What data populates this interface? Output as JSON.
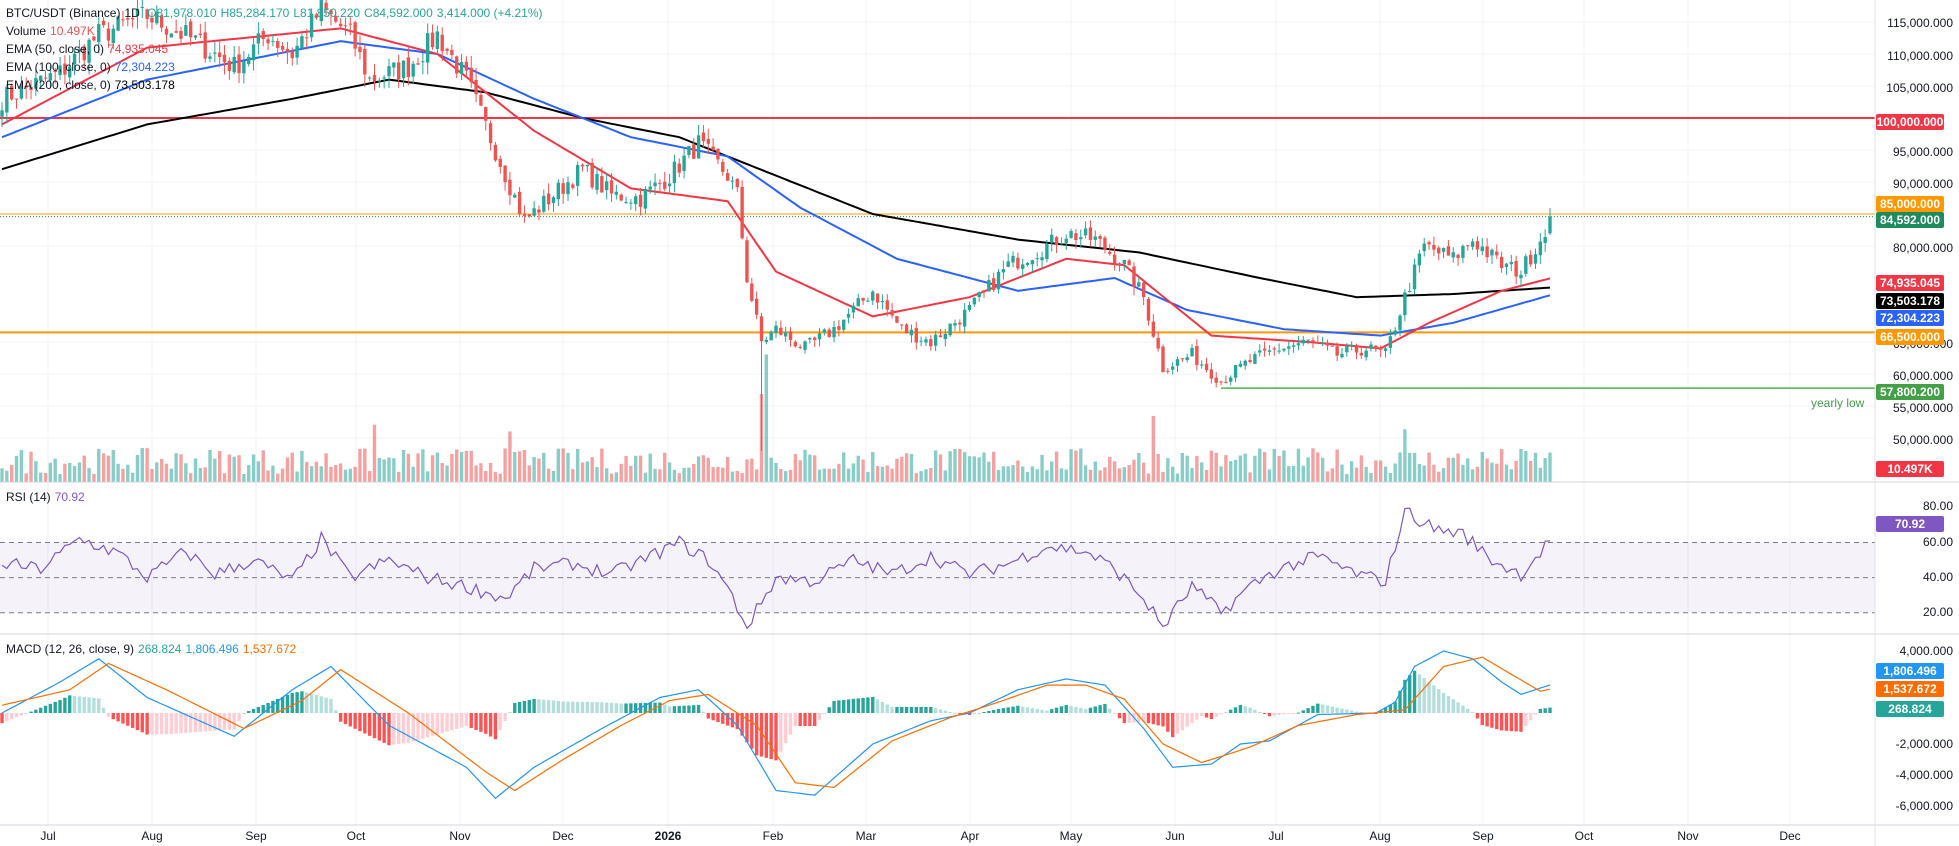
{
  "header": {
    "symbol": "BTC/USDT (Binance)",
    "interval": "1D",
    "open": "O81,978.010",
    "high": "H85,284.170",
    "low": "L81,850.220",
    "close": "C84,592.000",
    "change": "3,414.000 (+4.21%)"
  },
  "indicators": {
    "volume_label": "Volume",
    "volume_value": "10.497K",
    "ema50_label": "EMA (50, close, 0)",
    "ema50_value": "74,935.045",
    "ema100_label": "EMA (100, close, 0)",
    "ema100_value": "72,304.223",
    "ema200_label": "EMA (200, close, 0)",
    "ema200_value": "73,503.178",
    "rsi_label": "RSI (14)",
    "rsi_value": "70.92",
    "macd_label": "MACD (12, 26, close, 9)",
    "macd_hist": "268.824",
    "macd_line": "1,806.496",
    "macd_signal": "1,537.672"
  },
  "price_axis": [
    "115,000.000",
    "110,000.000",
    "105,000.000",
    "95,000.000",
    "90,000.000",
    "80,000.000",
    "65,000.000",
    "60,000.000",
    "55,000.000",
    "50,000.000"
  ],
  "rsi_axis": [
    "80.00",
    "60.00",
    "40.00",
    "20.00"
  ],
  "macd_axis": [
    "4,000.000",
    "-2,000.000",
    "-4,000.000",
    "-6,000.000"
  ],
  "time_axis": [
    "Jul",
    "Aug",
    "Sep",
    "Oct",
    "Nov",
    "Dec",
    "2026",
    "Feb",
    "Mar",
    "Apr",
    "May",
    "Jun",
    "Jul",
    "Aug",
    "Sep",
    "Oct",
    "Nov",
    "Dec"
  ],
  "levels": {
    "resistance_100k": "100,000.000",
    "level_85k": "85,000.000",
    "last_price": "84,592.000",
    "ema50_tag": "74,935.045",
    "ema200_tag": "73,503.178",
    "ema100_tag": "72,304.223",
    "support_66k": "66,500.000",
    "yearly_low": "57,800.200",
    "yearly_low_label": "yearly low",
    "volume_tag": "10.497K",
    "rsi_tag": "70.92",
    "macd_line_tag": "1,806.496",
    "macd_signal_tag": "1,537.672",
    "macd_hist_tag": "268.824"
  },
  "colors": {
    "up": "#26a69a",
    "down": "#ef5350",
    "ema50": "#f23645",
    "ema100": "#2962ff",
    "ema200": "#000000",
    "orange": "#ff9800",
    "green_line": "#4caf50",
    "rsi": "#7e57c2",
    "macd": "#2196f3",
    "signal": "#ff6d00"
  },
  "chart_data": {
    "type": "candlestick",
    "ylim": [
      45000,
      118000
    ],
    "anchors_close": [
      [
        0,
        103000
      ],
      [
        12,
        107000
      ],
      [
        20,
        113000
      ],
      [
        30,
        116000
      ],
      [
        40,
        112000
      ],
      [
        48,
        108000
      ],
      [
        55,
        113000
      ],
      [
        60,
        110000
      ],
      [
        66,
        117000
      ],
      [
        72,
        113000
      ],
      [
        76,
        106000
      ],
      [
        84,
        108000
      ],
      [
        90,
        113000
      ],
      [
        96,
        106000
      ],
      [
        102,
        95000
      ],
      [
        108,
        84000
      ],
      [
        114,
        88000
      ],
      [
        120,
        92000
      ],
      [
        126,
        88000
      ],
      [
        132,
        87500
      ],
      [
        138,
        91000
      ],
      [
        144,
        96000
      ],
      [
        150,
        91000
      ],
      [
        152,
        88000
      ],
      [
        154,
        75000
      ],
      [
        157,
        65000
      ],
      [
        160,
        67000
      ],
      [
        166,
        64000
      ],
      [
        172,
        67000
      ],
      [
        180,
        73000
      ],
      [
        186,
        67000
      ],
      [
        192,
        65000
      ],
      [
        200,
        70000
      ],
      [
        208,
        77000
      ],
      [
        216,
        80000
      ],
      [
        220,
        82000
      ],
      [
        226,
        81000
      ],
      [
        232,
        77000
      ],
      [
        236,
        72000
      ],
      [
        240,
        61000
      ],
      [
        246,
        63000
      ],
      [
        252,
        59000
      ],
      [
        258,
        62000
      ],
      [
        264,
        64000
      ],
      [
        270,
        65000
      ],
      [
        276,
        63000
      ],
      [
        282,
        64000
      ],
      [
        286,
        63000
      ],
      [
        290,
        72000
      ],
      [
        294,
        80000
      ],
      [
        300,
        78000
      ],
      [
        304,
        81000
      ],
      [
        310,
        77000
      ],
      [
        314,
        76000
      ],
      [
        318,
        81000
      ],
      [
        320,
        84592
      ]
    ],
    "volume_spikes": [
      [
        77,
        26
      ],
      [
        105,
        23
      ],
      [
        157,
        40
      ],
      [
        158,
        58
      ],
      [
        238,
        30
      ],
      [
        290,
        24
      ]
    ],
    "ema50": [
      [
        0,
        99000
      ],
      [
        30,
        111000
      ],
      [
        70,
        114000
      ],
      [
        90,
        110000
      ],
      [
        110,
        98000
      ],
      [
        130,
        89000
      ],
      [
        150,
        87000
      ],
      [
        160,
        76000
      ],
      [
        180,
        69000
      ],
      [
        200,
        72000
      ],
      [
        220,
        78000
      ],
      [
        232,
        77000
      ],
      [
        250,
        66000
      ],
      [
        270,
        65000
      ],
      [
        285,
        64000
      ],
      [
        295,
        68000
      ],
      [
        310,
        73000
      ],
      [
        320,
        74935
      ]
    ],
    "ema100": [
      [
        0,
        97000
      ],
      [
        30,
        106000
      ],
      [
        70,
        112000
      ],
      [
        90,
        110000
      ],
      [
        110,
        103000
      ],
      [
        130,
        97000
      ],
      [
        150,
        94000
      ],
      [
        165,
        86000
      ],
      [
        185,
        78000
      ],
      [
        210,
        73000
      ],
      [
        230,
        75000
      ],
      [
        245,
        70000
      ],
      [
        265,
        67000
      ],
      [
        285,
        66000
      ],
      [
        300,
        68000
      ],
      [
        320,
        72304
      ]
    ],
    "ema200": [
      [
        0,
        92000
      ],
      [
        30,
        99000
      ],
      [
        60,
        103000
      ],
      [
        80,
        106000
      ],
      [
        100,
        104000
      ],
      [
        120,
        100000
      ],
      [
        140,
        97000
      ],
      [
        160,
        91000
      ],
      [
        180,
        85000
      ],
      [
        210,
        81000
      ],
      [
        235,
        79000
      ],
      [
        260,
        75000
      ],
      [
        280,
        72000
      ],
      [
        300,
        72500
      ],
      [
        320,
        73503
      ]
    ],
    "rsi": [
      [
        0,
        58
      ],
      [
        8,
        55
      ],
      [
        16,
        72
      ],
      [
        24,
        64
      ],
      [
        30,
        50
      ],
      [
        38,
        65
      ],
      [
        44,
        52
      ],
      [
        52,
        60
      ],
      [
        60,
        48
      ],
      [
        66,
        72
      ],
      [
        72,
        50
      ],
      [
        80,
        60
      ],
      [
        88,
        50
      ],
      [
        96,
        45
      ],
      [
        104,
        38
      ],
      [
        110,
        55
      ],
      [
        118,
        58
      ],
      [
        126,
        52
      ],
      [
        134,
        62
      ],
      [
        140,
        70
      ],
      [
        146,
        60
      ],
      [
        150,
        44
      ],
      [
        154,
        22
      ],
      [
        160,
        50
      ],
      [
        168,
        48
      ],
      [
        176,
        60
      ],
      [
        184,
        52
      ],
      [
        192,
        62
      ],
      [
        200,
        52
      ],
      [
        208,
        58
      ],
      [
        216,
        68
      ],
      [
        224,
        65
      ],
      [
        230,
        55
      ],
      [
        236,
        38
      ],
      [
        240,
        22
      ],
      [
        246,
        45
      ],
      [
        252,
        30
      ],
      [
        258,
        45
      ],
      [
        264,
        55
      ],
      [
        272,
        62
      ],
      [
        280,
        52
      ],
      [
        286,
        48
      ],
      [
        290,
        88
      ],
      [
        296,
        78
      ],
      [
        302,
        75
      ],
      [
        308,
        60
      ],
      [
        314,
        52
      ],
      [
        320,
        70.92
      ]
    ],
    "macd": [
      [
        0,
        0
      ],
      [
        12,
        2000
      ],
      [
        20,
        3500
      ],
      [
        30,
        1000
      ],
      [
        48,
        -1500
      ],
      [
        60,
        1500
      ],
      [
        68,
        3000
      ],
      [
        80,
        -800
      ],
      [
        96,
        -3500
      ],
      [
        102,
        -5500
      ],
      [
        110,
        -3500
      ],
      [
        124,
        -1000
      ],
      [
        136,
        1000
      ],
      [
        144,
        1500
      ],
      [
        152,
        -800
      ],
      [
        160,
        -5000
      ],
      [
        168,
        -5300
      ],
      [
        180,
        -2000
      ],
      [
        192,
        -500
      ],
      [
        200,
        0
      ],
      [
        210,
        1500
      ],
      [
        220,
        2200
      ],
      [
        228,
        1800
      ],
      [
        236,
        -1000
      ],
      [
        242,
        -3500
      ],
      [
        250,
        -3300
      ],
      [
        256,
        -2000
      ],
      [
        262,
        -1800
      ],
      [
        272,
        -100
      ],
      [
        284,
        0
      ],
      [
        288,
        700
      ],
      [
        292,
        3000
      ],
      [
        298,
        4000
      ],
      [
        304,
        3500
      ],
      [
        310,
        2000
      ],
      [
        314,
        1200
      ],
      [
        320,
        1806
      ]
    ],
    "signal": [
      [
        0,
        500
      ],
      [
        14,
        1500
      ],
      [
        22,
        3200
      ],
      [
        34,
        1500
      ],
      [
        50,
        -1000
      ],
      [
        62,
        800
      ],
      [
        70,
        2800
      ],
      [
        84,
        0
      ],
      [
        100,
        -3800
      ],
      [
        106,
        -5000
      ],
      [
        116,
        -3000
      ],
      [
        128,
        -800
      ],
      [
        138,
        800
      ],
      [
        146,
        1200
      ],
      [
        156,
        -800
      ],
      [
        164,
        -4500
      ],
      [
        172,
        -4800
      ],
      [
        184,
        -1800
      ],
      [
        196,
        -300
      ],
      [
        206,
        700
      ],
      [
        216,
        1800
      ],
      [
        224,
        1800
      ],
      [
        232,
        900
      ],
      [
        240,
        -2000
      ],
      [
        248,
        -3200
      ],
      [
        258,
        -2200
      ],
      [
        268,
        -800
      ],
      [
        280,
        -100
      ],
      [
        290,
        200
      ],
      [
        298,
        3000
      ],
      [
        306,
        3600
      ],
      [
        312,
        2500
      ],
      [
        318,
        1400
      ],
      [
        320,
        1537
      ]
    ]
  }
}
